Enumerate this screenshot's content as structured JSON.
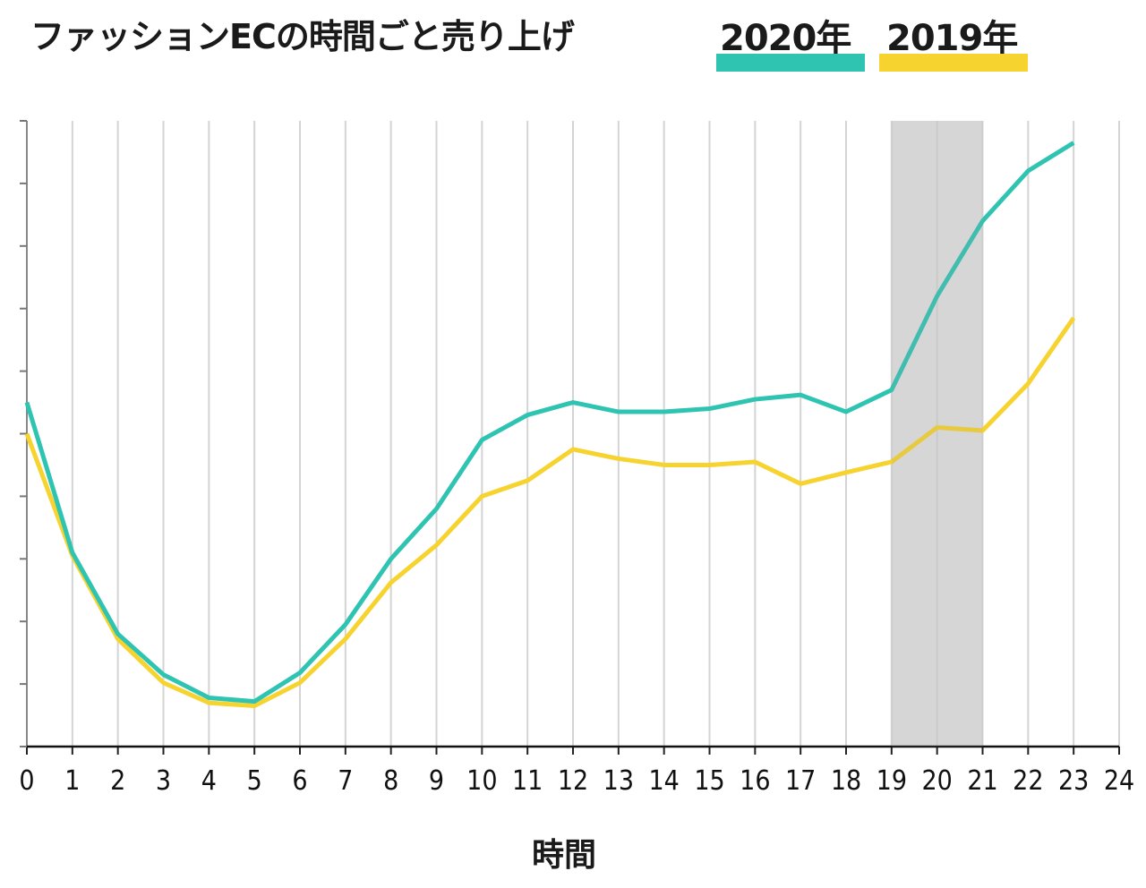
{
  "chart_data": {
    "type": "line",
    "title": "ファッションECの時間ごと売り上げ",
    "xlabel": "時間",
    "ylabel": "",
    "x": [
      0,
      1,
      2,
      3,
      4,
      5,
      6,
      7,
      8,
      9,
      10,
      11,
      12,
      13,
      14,
      15,
      16,
      17,
      18,
      19,
      20,
      21,
      22,
      23
    ],
    "x_ticks": [
      "0",
      "1",
      "2",
      "3",
      "4",
      "5",
      "6",
      "7",
      "8",
      "9",
      "10",
      "11",
      "12",
      "13",
      "14",
      "15",
      "16",
      "17",
      "18",
      "19",
      "20",
      "21",
      "22",
      "23",
      "24"
    ],
    "xlim": [
      0,
      24
    ],
    "ylim": [
      0,
      10
    ],
    "y_tick_count": 10,
    "grid": "vertical",
    "highlight_range": [
      19,
      21
    ],
    "series": [
      {
        "name": "2020年",
        "color": "#2fc4b2",
        "values": [
          5.5,
          3.1,
          1.8,
          1.15,
          0.78,
          0.72,
          1.18,
          1.95,
          3.0,
          3.8,
          4.9,
          5.3,
          5.5,
          5.35,
          5.35,
          5.4,
          5.55,
          5.62,
          5.35,
          5.7,
          7.2,
          8.4,
          9.2,
          9.65
        ]
      },
      {
        "name": "2019年",
        "color": "#f7d330",
        "values": [
          5.0,
          3.05,
          1.72,
          1.02,
          0.7,
          0.65,
          1.02,
          1.72,
          2.62,
          3.22,
          4.0,
          4.25,
          4.75,
          4.6,
          4.5,
          4.5,
          4.55,
          4.2,
          4.38,
          4.55,
          5.1,
          5.05,
          5.8,
          6.85
        ]
      }
    ]
  }
}
